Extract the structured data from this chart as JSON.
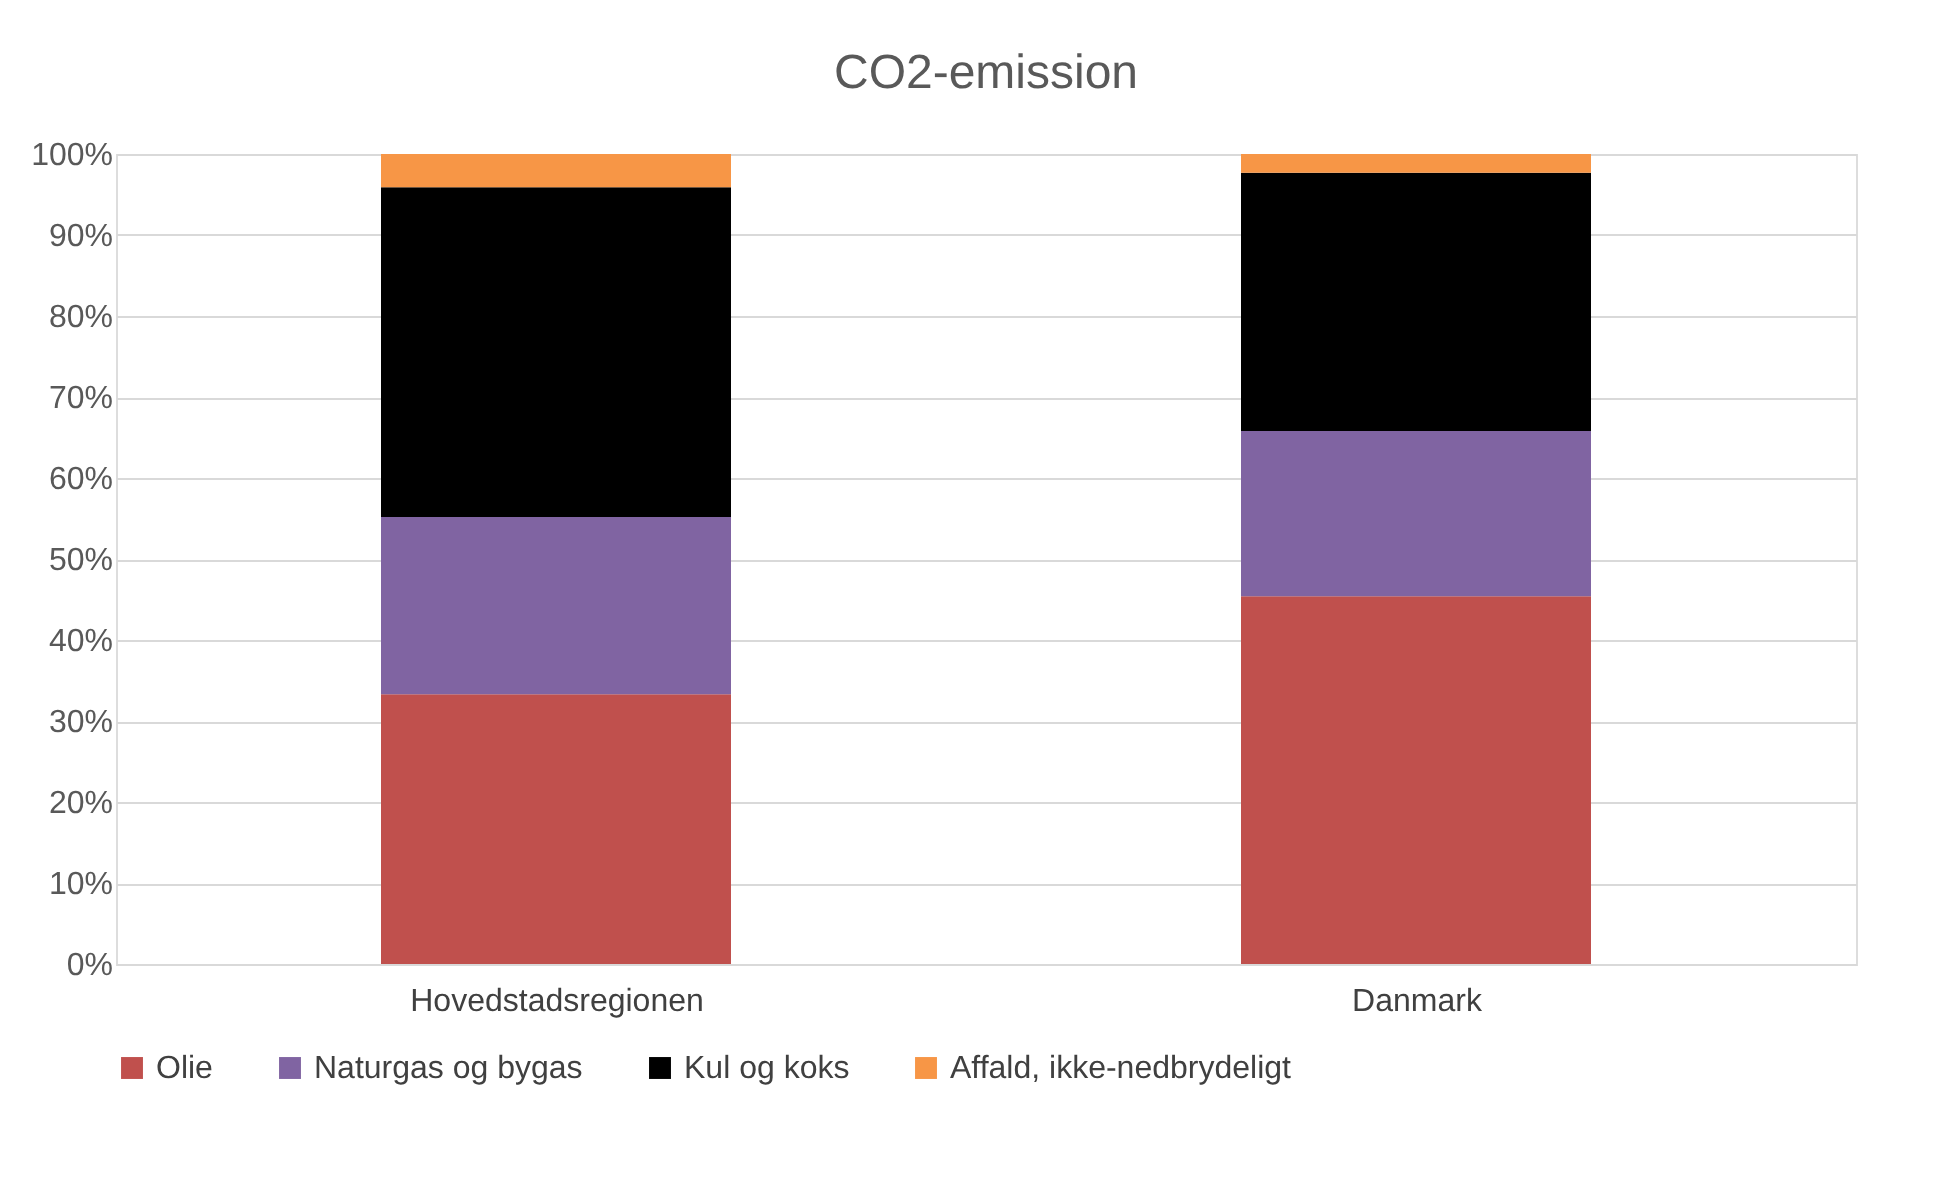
{
  "chart_data": {
    "type": "bar",
    "title": "CO2-emission",
    "categories": [
      "Hovedstadsregionen",
      "Danmark"
    ],
    "stacked": true,
    "series": [
      {
        "name": "Olie",
        "color": "#c0504d",
        "values": [
          33.3,
          45.4
        ]
      },
      {
        "name": "Naturgas og bygas",
        "color": "#8064a2",
        "values": [
          21.9,
          20.4
        ]
      },
      {
        "name": "Kul og koks",
        "color": "#000000",
        "values": [
          40.7,
          31.9
        ]
      },
      {
        "name": "Affald, ikke-nedbrydeligt",
        "color": "#f79646",
        "values": [
          4.1,
          2.3
        ]
      }
    ],
    "ylim": [
      0,
      100
    ],
    "yticks": [
      {
        "value": 0,
        "label": "0%"
      },
      {
        "value": 10,
        "label": "10%"
      },
      {
        "value": 20,
        "label": "20%"
      },
      {
        "value": 30,
        "label": "30%"
      },
      {
        "value": 40,
        "label": "40%"
      },
      {
        "value": 50,
        "label": "50%"
      },
      {
        "value": 60,
        "label": "60%"
      },
      {
        "value": 70,
        "label": "70%"
      },
      {
        "value": 80,
        "label": "80%"
      },
      {
        "value": 90,
        "label": "90%"
      },
      {
        "value": 100,
        "label": "100%"
      }
    ],
    "grid": "y",
    "legend": "bottom"
  }
}
